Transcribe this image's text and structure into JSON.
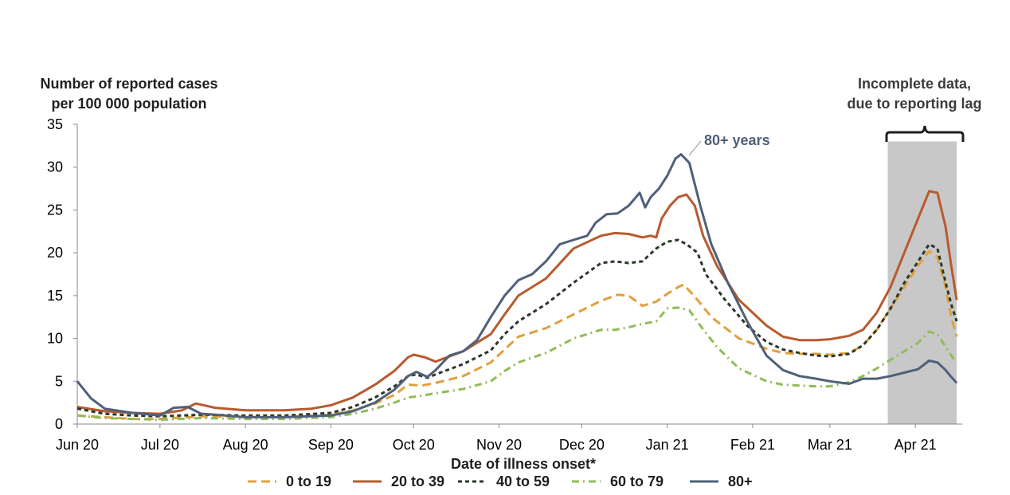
{
  "chart_data": {
    "type": "line",
    "title": "",
    "ylabel_lines": [
      "Number of reported cases",
      "per 100 000 population"
    ],
    "xlabel": "Date of illness onset*",
    "ylim": [
      0,
      35
    ],
    "yticks": [
      0,
      5,
      10,
      15,
      20,
      25,
      30,
      35
    ],
    "xlim": [
      0,
      321
    ],
    "x_unit": "days since 1 Jun 2020",
    "xticks": [
      {
        "label": "Jun 20",
        "day": 0
      },
      {
        "label": "Jul 20",
        "day": 30
      },
      {
        "label": "Aug 20",
        "day": 61
      },
      {
        "label": "Sep 20",
        "day": 92
      },
      {
        "label": "Oct 20",
        "day": 122
      },
      {
        "label": "Nov 20",
        "day": 153
      },
      {
        "label": "Dec 20",
        "day": 183
      },
      {
        "label": "Jan 21",
        "day": 214
      },
      {
        "label": "Feb 21",
        "day": 245
      },
      {
        "label": "Mar 21",
        "day": 273
      },
      {
        "label": "Apr 21",
        "day": 304
      }
    ],
    "shaded_region": {
      "from_day": 294,
      "to_day": 319,
      "value_top": 33,
      "color": "#c8c8c8"
    },
    "annotations": {
      "incomplete": [
        "Incomplete data,",
        "due to reporting lag"
      ],
      "callout": "80+ years"
    },
    "legend": {
      "position": "bottom"
    },
    "series": [
      {
        "name": "0 to 19",
        "color": "#e1a03e",
        "dash": "dash",
        "points": [
          [
            0,
            1.0
          ],
          [
            10,
            0.8
          ],
          [
            20,
            0.6
          ],
          [
            30,
            0.6
          ],
          [
            45,
            0.9
          ],
          [
            61,
            0.8
          ],
          [
            75,
            0.8
          ],
          [
            92,
            1.1
          ],
          [
            100,
            1.6
          ],
          [
            108,
            2.4
          ],
          [
            115,
            3.4
          ],
          [
            120,
            4.6
          ],
          [
            125,
            4.5
          ],
          [
            130,
            4.8
          ],
          [
            140,
            5.6
          ],
          [
            150,
            7.2
          ],
          [
            156,
            9.0
          ],
          [
            160,
            10.2
          ],
          [
            170,
            11.2
          ],
          [
            180,
            12.8
          ],
          [
            190,
            14.4
          ],
          [
            196,
            15.1
          ],
          [
            200,
            15.0
          ],
          [
            205,
            13.8
          ],
          [
            210,
            14.3
          ],
          [
            214,
            15.2
          ],
          [
            218,
            16.0
          ],
          [
            220,
            16.3
          ],
          [
            225,
            14.5
          ],
          [
            230,
            12.5
          ],
          [
            240,
            10.0
          ],
          [
            250,
            8.8
          ],
          [
            256,
            8.3
          ],
          [
            262,
            8.2
          ],
          [
            268,
            8.2
          ],
          [
            273,
            8.1
          ],
          [
            280,
            8.3
          ],
          [
            285,
            9.2
          ],
          [
            290,
            11.0
          ],
          [
            295,
            13.5
          ],
          [
            300,
            16.0
          ],
          [
            305,
            18.5
          ],
          [
            309,
            20.2
          ],
          [
            312,
            19.5
          ],
          [
            315,
            16.0
          ],
          [
            317,
            12.5
          ],
          [
            319,
            10.2
          ]
        ]
      },
      {
        "name": "20 to 39",
        "color": "#b85a2e",
        "dash": "solid",
        "points": [
          [
            0,
            2.0
          ],
          [
            10,
            1.5
          ],
          [
            20,
            1.3
          ],
          [
            30,
            1.2
          ],
          [
            38,
            1.6
          ],
          [
            43,
            2.4
          ],
          [
            50,
            1.9
          ],
          [
            61,
            1.6
          ],
          [
            75,
            1.6
          ],
          [
            85,
            1.8
          ],
          [
            92,
            2.2
          ],
          [
            100,
            3.1
          ],
          [
            108,
            4.6
          ],
          [
            115,
            6.2
          ],
          [
            120,
            7.8
          ],
          [
            122,
            8.1
          ],
          [
            126,
            7.8
          ],
          [
            130,
            7.3
          ],
          [
            140,
            8.5
          ],
          [
            150,
            10.5
          ],
          [
            155,
            12.8
          ],
          [
            160,
            15.0
          ],
          [
            170,
            17.0
          ],
          [
            180,
            20.5
          ],
          [
            190,
            22.0
          ],
          [
            195,
            22.3
          ],
          [
            200,
            22.2
          ],
          [
            205,
            21.8
          ],
          [
            208,
            22.0
          ],
          [
            210,
            21.8
          ],
          [
            212,
            24.0
          ],
          [
            215,
            25.5
          ],
          [
            218,
            26.5
          ],
          [
            221,
            26.8
          ],
          [
            224,
            25.5
          ],
          [
            227,
            22.0
          ],
          [
            232,
            18.5
          ],
          [
            240,
            14.5
          ],
          [
            250,
            11.5
          ],
          [
            256,
            10.2
          ],
          [
            262,
            9.8
          ],
          [
            268,
            9.8
          ],
          [
            273,
            9.9
          ],
          [
            280,
            10.3
          ],
          [
            285,
            11.0
          ],
          [
            290,
            13.0
          ],
          [
            295,
            16.0
          ],
          [
            300,
            20.0
          ],
          [
            305,
            24.0
          ],
          [
            309,
            27.2
          ],
          [
            312,
            27.0
          ],
          [
            315,
            23.0
          ],
          [
            317,
            18.5
          ],
          [
            319,
            14.5
          ]
        ]
      },
      {
        "name": "40 to 59",
        "color": "#2a3828",
        "dash": "dot",
        "points": [
          [
            0,
            1.8
          ],
          [
            10,
            1.2
          ],
          [
            20,
            1.0
          ],
          [
            30,
            0.9
          ],
          [
            45,
            1.1
          ],
          [
            61,
            1.0
          ],
          [
            75,
            1.0
          ],
          [
            92,
            1.3
          ],
          [
            100,
            2.0
          ],
          [
            108,
            3.1
          ],
          [
            115,
            4.4
          ],
          [
            120,
            5.6
          ],
          [
            123,
            5.8
          ],
          [
            127,
            5.4
          ],
          [
            130,
            5.8
          ],
          [
            140,
            7.0
          ],
          [
            150,
            8.6
          ],
          [
            155,
            10.5
          ],
          [
            160,
            12.0
          ],
          [
            170,
            14.0
          ],
          [
            180,
            16.5
          ],
          [
            190,
            18.8
          ],
          [
            195,
            19.0
          ],
          [
            200,
            18.8
          ],
          [
            205,
            19.0
          ],
          [
            210,
            20.5
          ],
          [
            214,
            21.3
          ],
          [
            218,
            21.5
          ],
          [
            221,
            21.0
          ],
          [
            225,
            20.0
          ],
          [
            228,
            17.5
          ],
          [
            235,
            14.5
          ],
          [
            243,
            11.5
          ],
          [
            250,
            9.6
          ],
          [
            256,
            8.7
          ],
          [
            262,
            8.3
          ],
          [
            268,
            8.0
          ],
          [
            273,
            7.9
          ],
          [
            280,
            8.2
          ],
          [
            285,
            9.2
          ],
          [
            290,
            11.0
          ],
          [
            295,
            13.5
          ],
          [
            300,
            16.5
          ],
          [
            305,
            19.0
          ],
          [
            309,
            21.0
          ],
          [
            312,
            20.5
          ],
          [
            315,
            16.5
          ],
          [
            317,
            14.0
          ],
          [
            319,
            12.0
          ]
        ]
      },
      {
        "name": "60 to 79",
        "color": "#8fbc5a",
        "dash": "dashdot",
        "points": [
          [
            0,
            1.0
          ],
          [
            10,
            0.7
          ],
          [
            20,
            0.6
          ],
          [
            30,
            0.5
          ],
          [
            45,
            0.7
          ],
          [
            61,
            0.6
          ],
          [
            75,
            0.6
          ],
          [
            92,
            0.8
          ],
          [
            100,
            1.2
          ],
          [
            108,
            1.8
          ],
          [
            115,
            2.5
          ],
          [
            120,
            3.1
          ],
          [
            125,
            3.3
          ],
          [
            130,
            3.6
          ],
          [
            140,
            4.1
          ],
          [
            150,
            5.0
          ],
          [
            155,
            6.2
          ],
          [
            160,
            7.2
          ],
          [
            170,
            8.3
          ],
          [
            180,
            10.0
          ],
          [
            190,
            11.0
          ],
          [
            195,
            11.0
          ],
          [
            200,
            11.3
          ],
          [
            205,
            11.7
          ],
          [
            210,
            12.0
          ],
          [
            214,
            13.5
          ],
          [
            218,
            13.6
          ],
          [
            222,
            13.3
          ],
          [
            226,
            11.5
          ],
          [
            232,
            9.0
          ],
          [
            240,
            6.5
          ],
          [
            250,
            5.0
          ],
          [
            256,
            4.6
          ],
          [
            262,
            4.5
          ],
          [
            268,
            4.4
          ],
          [
            273,
            4.4
          ],
          [
            280,
            4.9
          ],
          [
            285,
            5.6
          ],
          [
            290,
            6.5
          ],
          [
            295,
            7.5
          ],
          [
            300,
            8.5
          ],
          [
            305,
            9.5
          ],
          [
            309,
            10.8
          ],
          [
            312,
            10.5
          ],
          [
            315,
            9.0
          ],
          [
            317,
            8.0
          ],
          [
            319,
            7.2
          ]
        ]
      },
      {
        "name": "80+",
        "color": "#50607a",
        "dash": "solid",
        "points": [
          [
            0,
            5.0
          ],
          [
            5,
            3.0
          ],
          [
            10,
            1.8
          ],
          [
            20,
            1.3
          ],
          [
            30,
            1.0
          ],
          [
            35,
            1.9
          ],
          [
            40,
            2.0
          ],
          [
            45,
            1.2
          ],
          [
            50,
            1.1
          ],
          [
            61,
            0.8
          ],
          [
            75,
            0.8
          ],
          [
            92,
            1.0
          ],
          [
            100,
            1.5
          ],
          [
            108,
            2.5
          ],
          [
            115,
            4.0
          ],
          [
            120,
            5.6
          ],
          [
            123,
            6.1
          ],
          [
            127,
            5.5
          ],
          [
            130,
            6.3
          ],
          [
            135,
            8.0
          ],
          [
            140,
            8.5
          ],
          [
            145,
            9.8
          ],
          [
            150,
            12.5
          ],
          [
            155,
            15.0
          ],
          [
            160,
            16.8
          ],
          [
            165,
            17.5
          ],
          [
            170,
            19.0
          ],
          [
            175,
            21.0
          ],
          [
            180,
            21.5
          ],
          [
            185,
            22.0
          ],
          [
            188,
            23.5
          ],
          [
            192,
            24.5
          ],
          [
            196,
            24.6
          ],
          [
            200,
            25.5
          ],
          [
            204,
            27.0
          ],
          [
            206,
            25.3
          ],
          [
            208,
            26.5
          ],
          [
            211,
            27.5
          ],
          [
            214,
            29.0
          ],
          [
            217,
            31.0
          ],
          [
            219,
            31.5
          ],
          [
            222,
            30.5
          ],
          [
            226,
            25.5
          ],
          [
            230,
            21.0
          ],
          [
            236,
            16.5
          ],
          [
            243,
            12.0
          ],
          [
            250,
            8.0
          ],
          [
            256,
            6.3
          ],
          [
            262,
            5.6
          ],
          [
            268,
            5.3
          ],
          [
            273,
            5.0
          ],
          [
            280,
            4.7
          ],
          [
            285,
            5.3
          ],
          [
            290,
            5.3
          ],
          [
            295,
            5.6
          ],
          [
            300,
            6.0
          ],
          [
            305,
            6.4
          ],
          [
            309,
            7.4
          ],
          [
            312,
            7.2
          ],
          [
            315,
            6.3
          ],
          [
            317,
            5.5
          ],
          [
            319,
            4.8
          ]
        ]
      }
    ]
  }
}
